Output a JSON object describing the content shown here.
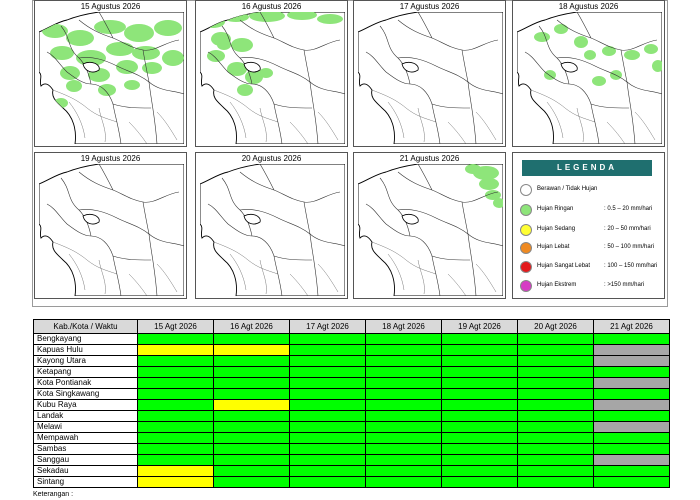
{
  "maps": [
    {
      "date": "15 Agustus 2026",
      "rain": "heavy-coverage"
    },
    {
      "date": "16 Agustus 2026",
      "rain": "medium-coverage"
    },
    {
      "date": "17 Agustus 2026",
      "rain": "none"
    },
    {
      "date": "18 Agustus 2026",
      "rain": "scattered"
    },
    {
      "date": "19 Agustus 2026",
      "rain": "none"
    },
    {
      "date": "20 Agustus 2026",
      "rain": "none"
    },
    {
      "date": "21 Agustus 2026",
      "rain": "northeast-patch"
    }
  ],
  "legend": {
    "title": "LEGENDA",
    "items": [
      {
        "label": "Berawan / Tidak Hujan",
        "range": "",
        "color": "#ffffff"
      },
      {
        "label": "Hujan Ringan",
        "range": ": 0.5 – 20 mm/hari",
        "color": "#8ee57a"
      },
      {
        "label": "Hujan Sedang",
        "range": ": 20 – 50 mm/hari",
        "color": "#ffff33"
      },
      {
        "label": "Hujan Lebat",
        "range": ": 50 – 100 mm/hari",
        "color": "#ef8a22"
      },
      {
        "label": "Hujan Sangat Lebat",
        "range": ": 100 – 150 mm/hari",
        "color": "#e31a1c"
      },
      {
        "label": "Hujan Ekstrem",
        "range": ": >150 mm/hari",
        "color": "#d63cc4"
      }
    ]
  },
  "table": {
    "header": [
      "Kab./Kota / Waktu",
      "15 Agt 2026",
      "16 Agt 2026",
      "17 Agt 2026",
      "18 Agt 2026",
      "19 Agt 2026",
      "20 Agt 2026",
      "21 Agt 2026"
    ],
    "status_colors": {
      "G": "#00ff00",
      "Y": "#ffff00",
      "X": "#a6a6a6",
      "W": "#ffffff"
    },
    "rows": [
      {
        "name": "Bengkayang",
        "cells": [
          "G",
          "G",
          "G",
          "G",
          "G",
          "G",
          "G"
        ]
      },
      {
        "name": "Kapuas Hulu",
        "cells": [
          "Y",
          "Y",
          "G",
          "G",
          "G",
          "G",
          "X"
        ]
      },
      {
        "name": "Kayong Utara",
        "cells": [
          "G",
          "G",
          "G",
          "G",
          "G",
          "G",
          "X"
        ]
      },
      {
        "name": "Ketapang",
        "cells": [
          "G",
          "G",
          "G",
          "G",
          "G",
          "G",
          "G"
        ]
      },
      {
        "name": "Kota Pontianak",
        "cells": [
          "G",
          "G",
          "G",
          "G",
          "G",
          "G",
          "X"
        ]
      },
      {
        "name": "Kota Singkawang",
        "cells": [
          "G",
          "G",
          "G",
          "G",
          "G",
          "G",
          "G"
        ]
      },
      {
        "name": "Kubu Raya",
        "cells": [
          "G",
          "Y",
          "G",
          "G",
          "G",
          "G",
          "X"
        ]
      },
      {
        "name": "Landak",
        "cells": [
          "G",
          "G",
          "G",
          "G",
          "G",
          "G",
          "G"
        ]
      },
      {
        "name": "Melawi",
        "cells": [
          "G",
          "G",
          "G",
          "G",
          "G",
          "G",
          "X"
        ]
      },
      {
        "name": "Mempawah",
        "cells": [
          "G",
          "G",
          "G",
          "G",
          "G",
          "G",
          "G"
        ]
      },
      {
        "name": "Sambas",
        "cells": [
          "G",
          "G",
          "G",
          "G",
          "G",
          "G",
          "G"
        ]
      },
      {
        "name": "Sanggau",
        "cells": [
          "G",
          "G",
          "G",
          "G",
          "G",
          "G",
          "X"
        ]
      },
      {
        "name": "Sekadau",
        "cells": [
          "Y",
          "G",
          "G",
          "G",
          "G",
          "G",
          "G"
        ]
      },
      {
        "name": "Sintang",
        "cells": [
          "Y",
          "G",
          "G",
          "G",
          "G",
          "G",
          "G"
        ]
      }
    ]
  },
  "footer": {
    "note": "Keterangan :"
  }
}
